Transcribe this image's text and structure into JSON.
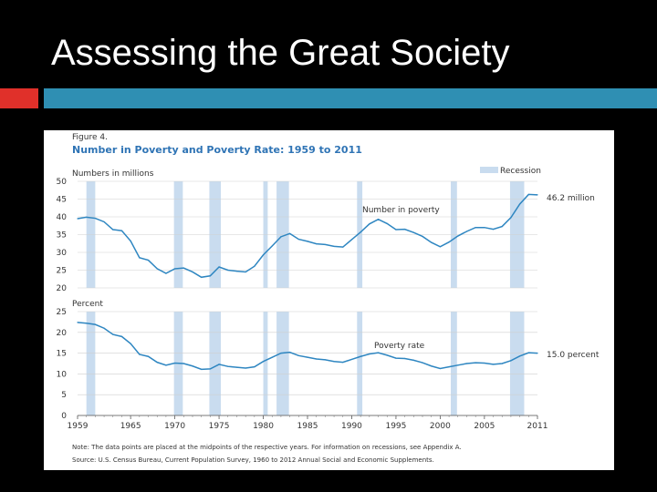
{
  "slide": {
    "title": "Assessing the Great Society"
  },
  "figure": {
    "label": "Figure 4.",
    "heading": "Number in Poverty and Poverty Rate: 1959 to 2011",
    "legend_label": "Recession",
    "note": "Note: The data points are placed at the midpoints of the respective years. For information on recessions, see Appendix A.",
    "source": "Source: U.S. Census Bureau, Current Population Survey, 1960 to 2012 Annual Social and Economic Supplements."
  },
  "colors": {
    "accent_red": "#e0302a",
    "accent_teal": "#2f8fb3",
    "line": "#2e86c1",
    "recession": "#c9dcef"
  },
  "chart_data": [
    {
      "type": "line",
      "title": "Number in Poverty and Poverty Rate: 1959 to 2011",
      "ylabel": "Numbers in millions",
      "ylim": [
        20,
        50
      ],
      "yticks": [
        20,
        25,
        30,
        35,
        40,
        45,
        50
      ],
      "series_label": "Number in poverty",
      "end_label": "46.2 million",
      "recessions": [
        [
          1960,
          1961
        ],
        [
          1969.9,
          1970.9
        ],
        [
          1973.9,
          1975.2
        ],
        [
          1980,
          1980.5
        ],
        [
          1981.5,
          1982.9
        ],
        [
          1990.6,
          1991.2
        ],
        [
          2001.2,
          2001.9
        ],
        [
          2007.9,
          2009.5
        ]
      ],
      "x": [
        1959,
        1960,
        1961,
        1962,
        1963,
        1964,
        1965,
        1966,
        1967,
        1968,
        1969,
        1970,
        1971,
        1972,
        1973,
        1974,
        1975,
        1976,
        1977,
        1978,
        1979,
        1980,
        1981,
        1982,
        1983,
        1984,
        1985,
        1986,
        1987,
        1988,
        1989,
        1990,
        1991,
        1992,
        1993,
        1994,
        1995,
        1996,
        1997,
        1998,
        1999,
        2000,
        2001,
        2002,
        2003,
        2004,
        2005,
        2006,
        2007,
        2008,
        2009,
        2010,
        2011
      ],
      "values": [
        39.5,
        39.9,
        39.6,
        38.6,
        36.4,
        36.1,
        33.2,
        28.5,
        27.8,
        25.4,
        24.1,
        25.4,
        25.6,
        24.5,
        23.0,
        23.4,
        25.9,
        25.0,
        24.7,
        24.5,
        26.1,
        29.3,
        31.8,
        34.4,
        35.3,
        33.7,
        33.1,
        32.4,
        32.2,
        31.7,
        31.5,
        33.6,
        35.7,
        38.0,
        39.3,
        38.1,
        36.4,
        36.5,
        35.6,
        34.5,
        32.8,
        31.6,
        32.9,
        34.6,
        35.9,
        37.0,
        37.0,
        36.5,
        37.3,
        39.8,
        43.6,
        46.3,
        46.2
      ]
    },
    {
      "type": "line",
      "ylabel": "Percent",
      "ylim": [
        0,
        25
      ],
      "yticks": [
        0,
        5,
        10,
        15,
        20,
        25
      ],
      "series_label": "Poverty rate",
      "end_label": "15.0 percent",
      "xlim": [
        1959,
        2011
      ],
      "xticks": [
        1959,
        1965,
        1970,
        1975,
        1980,
        1985,
        1990,
        1995,
        2000,
        2005,
        2011
      ],
      "x": [
        1959,
        1960,
        1961,
        1962,
        1963,
        1964,
        1965,
        1966,
        1967,
        1968,
        1969,
        1970,
        1971,
        1972,
        1973,
        1974,
        1975,
        1976,
        1977,
        1978,
        1979,
        1980,
        1981,
        1982,
        1983,
        1984,
        1985,
        1986,
        1987,
        1988,
        1989,
        1990,
        1991,
        1992,
        1993,
        1994,
        1995,
        1996,
        1997,
        1998,
        1999,
        2000,
        2001,
        2002,
        2003,
        2004,
        2005,
        2006,
        2007,
        2008,
        2009,
        2010,
        2011
      ],
      "values": [
        22.4,
        22.2,
        21.9,
        21.0,
        19.5,
        19.0,
        17.3,
        14.7,
        14.2,
        12.8,
        12.1,
        12.6,
        12.5,
        11.9,
        11.1,
        11.2,
        12.3,
        11.8,
        11.6,
        11.4,
        11.7,
        13.0,
        14.0,
        15.0,
        15.2,
        14.4,
        14.0,
        13.6,
        13.4,
        13.0,
        12.8,
        13.5,
        14.2,
        14.8,
        15.1,
        14.5,
        13.8,
        13.7,
        13.3,
        12.7,
        11.9,
        11.3,
        11.7,
        12.1,
        12.5,
        12.7,
        12.6,
        12.3,
        12.5,
        13.2,
        14.3,
        15.1,
        15.0
      ]
    }
  ]
}
